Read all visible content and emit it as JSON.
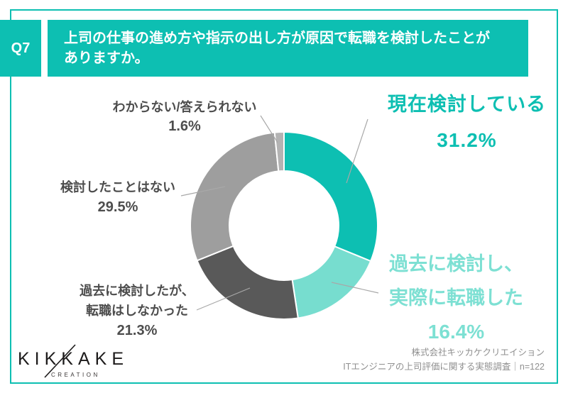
{
  "page": {
    "accent_color": "#0dbfb2",
    "background": "#ffffff"
  },
  "header": {
    "q_label": "Q7",
    "question": "上司の仕事の進め方や指示の出し方が原因で転職を検討したことが\nありますか。"
  },
  "chart_data": {
    "type": "pie",
    "subtype": "donut",
    "title": "上司の仕事の進め方や指示の出し方が原因で転職を検討したことがありますか。",
    "start_angle_deg": 0,
    "direction": "clockwise",
    "inner_radius_ratio": 0.58,
    "segments": [
      {
        "label": "現在検討している",
        "value": 31.2,
        "pct_label": "31.2%",
        "color": "#0dbfb2",
        "label_color": "#0dbfb2"
      },
      {
        "label": "過去に検討し、\n実際に転職した",
        "value": 16.4,
        "pct_label": "16.4%",
        "color": "#77ddcf",
        "label_color": "#7de0d3"
      },
      {
        "label": "過去に検討したが、\n転職はしなかった",
        "value": 21.3,
        "pct_label": "21.3%",
        "color": "#595959",
        "label_color": "#4d4d4d"
      },
      {
        "label": "検討したことはない",
        "value": 29.5,
        "pct_label": "29.5%",
        "color": "#9e9e9e",
        "label_color": "#4d4d4d"
      },
      {
        "label": "わからない/答えられない",
        "value": 1.6,
        "pct_label": "1.6%",
        "color": "#b3b3b3",
        "label_color": "#4d4d4d"
      }
    ]
  },
  "footer": {
    "logo_text": "KIKKAKE",
    "logo_sub": "CREATION",
    "source_line1": "株式会社キッカケクリエイション",
    "source_line2": "ITエンジニアの上司評価に関する実態調査｜n=122"
  }
}
